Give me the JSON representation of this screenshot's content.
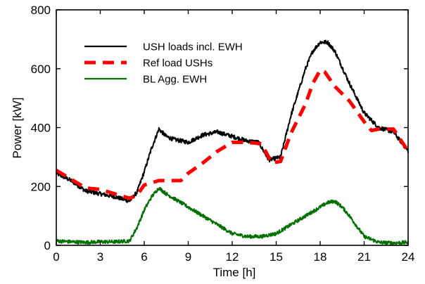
{
  "chart_data": {
    "type": "line",
    "xlabel": "Time [h]",
    "ylabel": "Power [kW]",
    "xlim": [
      0,
      24
    ],
    "ylim": [
      0,
      800
    ],
    "xticks": [
      0,
      3,
      6,
      9,
      12,
      15,
      18,
      21,
      24
    ],
    "yticks": [
      0,
      200,
      400,
      600,
      800
    ],
    "xtick_labels": [
      "0",
      "3",
      "6",
      "9",
      "12",
      "15",
      "18",
      "21",
      "24"
    ],
    "ytick_labels": [
      "0",
      "200",
      "400",
      "600",
      "800"
    ],
    "grid": false,
    "legend_position": "top-left",
    "series": [
      {
        "name": "USH loads incl. EWH",
        "color": "#000000",
        "style": "solid",
        "noise": 7,
        "x": [
          0,
          1,
          2,
          3,
          4,
          5,
          5.5,
          6,
          6.5,
          7,
          7.5,
          8,
          9,
          10,
          11,
          12,
          13,
          13.8,
          14.5,
          15.3,
          16,
          16.5,
          17,
          17.5,
          18,
          18.5,
          19,
          20,
          21,
          22,
          23,
          24
        ],
        "y": [
          245,
          220,
          185,
          175,
          165,
          150,
          180,
          250,
          330,
          395,
          370,
          360,
          350,
          375,
          385,
          370,
          355,
          350,
          290,
          300,
          440,
          520,
          600,
          660,
          690,
          690,
          660,
          550,
          450,
          400,
          385,
          320
        ]
      },
      {
        "name": "Ref load USHs",
        "color": "#ff0000",
        "style": "dashed",
        "noise": 0,
        "x": [
          0,
          1,
          2,
          3,
          4,
          5,
          5.5,
          6,
          7,
          8,
          8.5,
          9,
          10,
          11,
          12,
          13,
          14,
          14.7,
          15.3,
          16,
          17,
          17.5,
          18,
          18.3,
          19,
          20,
          21,
          21.5,
          22,
          23,
          24
        ],
        "y": [
          255,
          225,
          195,
          190,
          175,
          160,
          170,
          205,
          220,
          220,
          220,
          245,
          280,
          320,
          350,
          350,
          345,
          280,
          285,
          380,
          480,
          550,
          595,
          590,
          540,
          490,
          420,
          390,
          395,
          395,
          320
        ]
      },
      {
        "name": "BL Agg. EWH",
        "color": "#007000",
        "style": "solid",
        "noise": 6,
        "x": [
          0,
          1,
          2,
          3,
          4,
          5,
          5.5,
          6,
          6.5,
          7,
          7.5,
          8,
          9,
          10,
          11,
          12,
          13,
          14,
          15,
          16,
          17,
          18,
          18.5,
          19,
          19.5,
          20,
          21,
          22,
          23,
          24
        ],
        "y": [
          15,
          12,
          10,
          12,
          12,
          15,
          60,
          120,
          165,
          195,
          175,
          160,
          130,
          100,
          70,
          40,
          30,
          30,
          40,
          70,
          100,
          130,
          145,
          150,
          130,
          100,
          30,
          10,
          8,
          10
        ]
      }
    ]
  }
}
